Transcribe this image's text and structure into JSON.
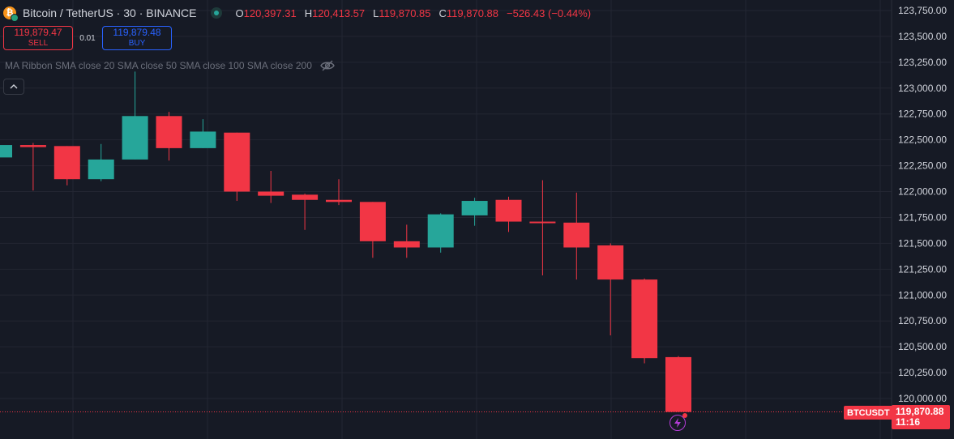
{
  "header": {
    "symbol": "Bitcoin / TetherUS · 30 · BINANCE",
    "logo_glyph": "₿",
    "ohlc": {
      "o_label": "O",
      "o": "120,397.31",
      "h_label": "H",
      "h": "120,413.57",
      "l_label": "L",
      "l": "119,870.85",
      "c_label": "C",
      "c": "119,870.88",
      "change": "−526.43 (−0.44%)"
    }
  },
  "trade": {
    "sell_price": "119,879.47",
    "sell_label": "SELL",
    "spread": "0.01",
    "buy_price": "119,879.48",
    "buy_label": "BUY"
  },
  "indicator": {
    "label": "MA Ribbon SMA close 20 SMA close 50 SMA close 100 SMA close 200"
  },
  "price_tag": {
    "symbol": "BTCUSDT",
    "price": "119,870.88",
    "countdown": "11:16"
  },
  "colors": {
    "background": "#161a25",
    "grid": "#232632",
    "up": "#26a69a",
    "down": "#f23645",
    "axis_text": "#d1d4dc",
    "buy": "#2962ff",
    "alert": "#b33cd6"
  },
  "icons": {
    "eye": "eye-off-icon",
    "collapse": "chevron-up-icon",
    "alert": "lightning-icon"
  },
  "chart_data": {
    "type": "candlestick",
    "ylim": [
      119850,
      123800
    ],
    "y_ticks": [
      "120,000.00",
      "120,250.00",
      "120,500.00",
      "120,750.00",
      "121,000.00",
      "121,250.00",
      "121,500.00",
      "121,750.00",
      "122,000.00",
      "122,250.00",
      "122,500.00",
      "122,750.00",
      "123,000.00",
      "123,250.00",
      "123,500.00",
      "123,750.00"
    ],
    "y_tick_values": [
      120000,
      120250,
      120500,
      120750,
      121000,
      121250,
      121500,
      121750,
      122000,
      122250,
      122500,
      122750,
      123000,
      123250,
      123500,
      123750
    ],
    "last_price": 119870.88,
    "candles": [
      {
        "o": 122330,
        "h": 122490,
        "l": 122290,
        "c": 122450
      },
      {
        "o": 122450,
        "h": 122470,
        "l": 122010,
        "c": 122430
      },
      {
        "o": 122440,
        "h": 122440,
        "l": 122060,
        "c": 122120
      },
      {
        "o": 122120,
        "h": 122460,
        "l": 122100,
        "c": 122310
      },
      {
        "o": 122310,
        "h": 123160,
        "l": 122310,
        "c": 122730
      },
      {
        "o": 122730,
        "h": 122770,
        "l": 122300,
        "c": 122420
      },
      {
        "o": 122420,
        "h": 122700,
        "l": 122420,
        "c": 122580
      },
      {
        "o": 122570,
        "h": 122570,
        "l": 121910,
        "c": 122000
      },
      {
        "o": 122000,
        "h": 122200,
        "l": 121890,
        "c": 121960
      },
      {
        "o": 121970,
        "h": 121980,
        "l": 121630,
        "c": 121920
      },
      {
        "o": 121920,
        "h": 122120,
        "l": 121870,
        "c": 121900
      },
      {
        "o": 121900,
        "h": 121900,
        "l": 121360,
        "c": 121520
      },
      {
        "o": 121520,
        "h": 121680,
        "l": 121360,
        "c": 121460
      },
      {
        "o": 121460,
        "h": 121790,
        "l": 121410,
        "c": 121780
      },
      {
        "o": 121770,
        "h": 121940,
        "l": 121670,
        "c": 121910
      },
      {
        "o": 121920,
        "h": 121950,
        "l": 121610,
        "c": 121710
      },
      {
        "o": 121710,
        "h": 122110,
        "l": 121190,
        "c": 121700
      },
      {
        "o": 121700,
        "h": 121990,
        "l": 121150,
        "c": 121460
      },
      {
        "o": 121480,
        "h": 121500,
        "l": 120610,
        "c": 121150
      },
      {
        "o": 121150,
        "h": 121160,
        "l": 120340,
        "c": 120390
      },
      {
        "o": 120400,
        "h": 120410,
        "l": 119870,
        "c": 119870
      }
    ]
  }
}
